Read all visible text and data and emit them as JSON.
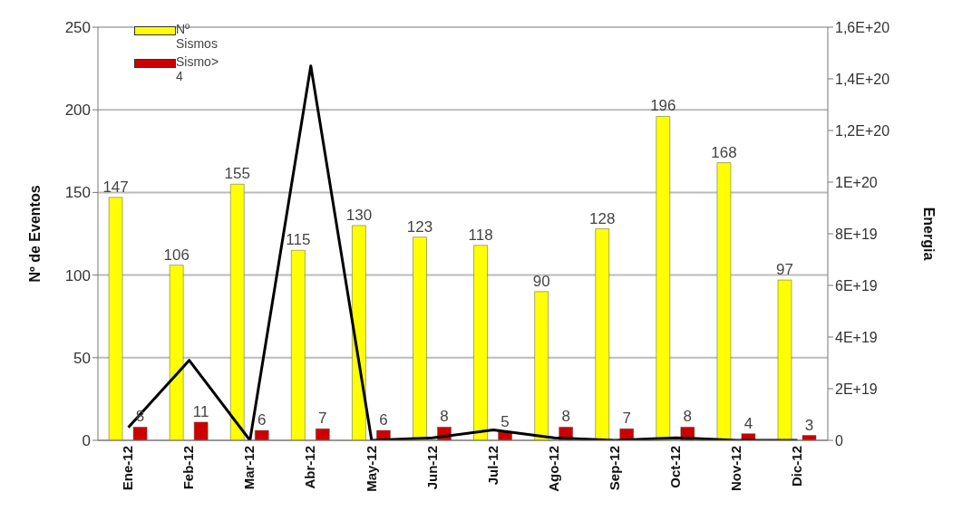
{
  "chart_data": {
    "type": "bar",
    "xlabel": null,
    "ylabel": "Nº de Eventos",
    "y2label": "Energia",
    "categories": [
      "Ene-12",
      "Feb-12",
      "Mar-12",
      "Abr-12",
      "May-12",
      "Jun-12",
      "Jul-12",
      "Ago-12",
      "Sep-12",
      "Oct-12",
      "Nov-12",
      "Dic-12"
    ],
    "series": [
      {
        "name": "Nº Sismos",
        "color": "#ffff00",
        "values": [
          147,
          106,
          155,
          115,
          130,
          123,
          118,
          90,
          128,
          196,
          168,
          97
        ],
        "value_labels": [
          "147",
          "106",
          "155",
          "115",
          "130",
          "123",
          "118",
          "90",
          "128",
          "196",
          "168",
          "97"
        ]
      },
      {
        "name": "Sismo> 4",
        "color": "#cc0000",
        "values": [
          8,
          11,
          6,
          7,
          6,
          8,
          5,
          8,
          7,
          8,
          4,
          3
        ],
        "value_labels": [
          "8",
          "11",
          "6",
          "7",
          "6",
          "8",
          "5",
          "8",
          "7",
          "8",
          "4",
          "3"
        ]
      },
      {
        "type": "line",
        "axis": "y2",
        "color": "#000000",
        "values": [
          5e+18,
          3.1e+19,
          0,
          1.45e+20,
          0,
          1e+18,
          4e+18,
          1e+18,
          0,
          1e+18,
          0,
          0
        ]
      }
    ],
    "ylim": [
      0,
      250
    ],
    "yticks": [
      0,
      50,
      100,
      150,
      200,
      250
    ],
    "y2lim": [
      0,
      1.6e+20
    ],
    "y2ticks": [
      0,
      {
        "value": 2e+19,
        "label": "2E+19"
      },
      {
        "value": 4e+19,
        "label": "4E+19"
      },
      {
        "value": 6e+19,
        "label": "6E+19"
      },
      {
        "value": 8e+19,
        "label": "8E+19"
      },
      {
        "value": 1e+20,
        "label": "1E+20"
      },
      {
        "value": 1.2e+20,
        "label": "1,2E+20"
      },
      {
        "value": 1.4e+20,
        "label": "1,4E+20"
      },
      {
        "value": 1.6e+20,
        "label": "1,6E+20"
      }
    ],
    "grid": "y",
    "legend": "top left",
    "marker": "none",
    "line_style": "solid"
  }
}
